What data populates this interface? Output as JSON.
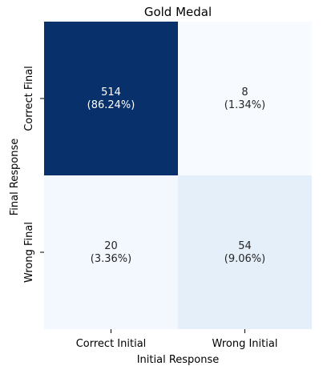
{
  "chart_data": {
    "type": "heatmap",
    "title": "Gold Medal",
    "xlabel": "Initial Response",
    "ylabel": "Final Response",
    "x_categories": [
      "Correct Initial",
      "Wrong Initial"
    ],
    "y_categories": [
      "Correct Final",
      "Wrong Final"
    ],
    "values": [
      [
        514,
        8
      ],
      [
        20,
        54
      ]
    ],
    "annotations": [
      [
        "514\n(86.24%)",
        "8\n(1.34%)"
      ],
      [
        "20\n(3.36%)",
        "54\n(9.06%)"
      ]
    ],
    "colormap": "Blues",
    "colorbar": false,
    "grid": false
  }
}
